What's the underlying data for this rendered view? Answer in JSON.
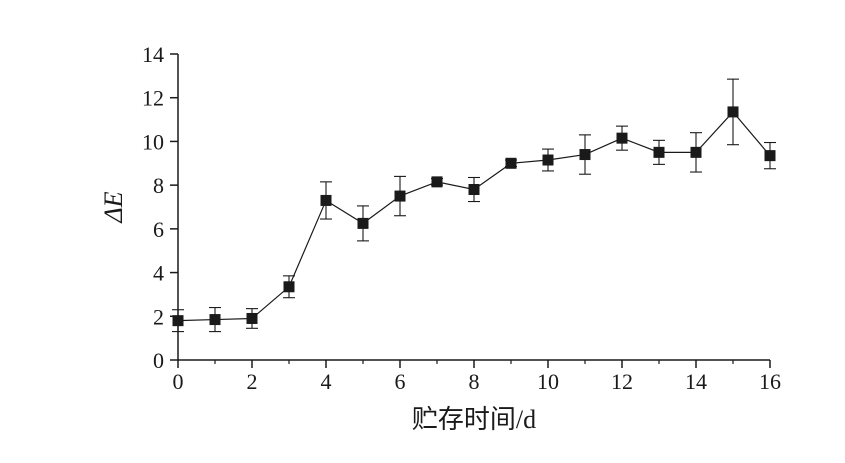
{
  "chart_data": {
    "type": "line",
    "title": "",
    "xlabel": "贮存时间/d",
    "ylabel": "ΔE",
    "xlim": [
      0,
      16
    ],
    "ylim": [
      0,
      14
    ],
    "xticks": [
      0,
      2,
      4,
      6,
      8,
      10,
      12,
      14,
      16
    ],
    "yticks": [
      0,
      2,
      4,
      6,
      8,
      10,
      12,
      14
    ],
    "grid": false,
    "legend": "none",
    "marker": "filled-square",
    "color": "#1a1a1a",
    "series": [
      {
        "x": [
          0,
          1,
          2,
          3,
          4,
          5,
          6,
          7,
          8,
          9,
          10,
          11,
          12,
          13,
          14,
          15,
          16
        ],
        "values": [
          1.8,
          1.85,
          1.9,
          3.35,
          7.3,
          6.25,
          7.5,
          8.15,
          7.8,
          9.0,
          9.15,
          9.4,
          10.15,
          9.5,
          9.5,
          11.35,
          9.35
        ],
        "error": [
          0.5,
          0.55,
          0.45,
          0.5,
          0.85,
          0.8,
          0.9,
          0.15,
          0.55,
          0.15,
          0.5,
          0.9,
          0.55,
          0.55,
          0.9,
          1.5,
          0.6
        ]
      }
    ]
  }
}
